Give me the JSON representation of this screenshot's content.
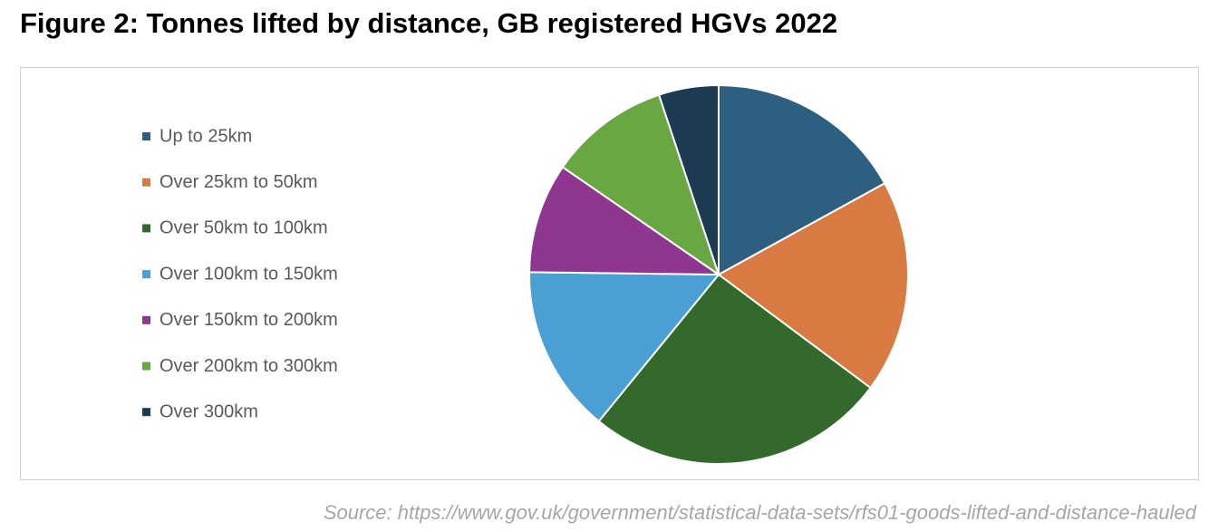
{
  "chart_data": {
    "type": "pie",
    "title": "Figure 2: Tonnes lifted by distance, GB registered HGVs 2022",
    "categories": [
      "Up to 25km",
      "Over 25km to 50km",
      "Over 50km to 100km",
      "Over 100km to 150km",
      "Over 150km to 200km",
      "Over 200km to 300km",
      "Over 300km"
    ],
    "values": [
      17,
      18.2,
      25.7,
      14.3,
      9.4,
      10.3,
      5.1
    ],
    "colors": [
      "#2e5e80",
      "#d97a42",
      "#336a2c",
      "#4a9fd4",
      "#8f3790",
      "#69a743",
      "#1c3a51"
    ],
    "legend": "left",
    "source": "Source: https://www.gov.uk/government/statistical-data-sets/rfs01-goods-lifted-and-distance-hauled"
  }
}
